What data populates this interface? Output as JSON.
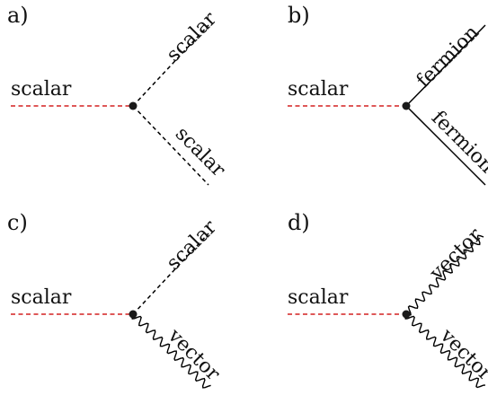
{
  "colors": {
    "incoming": "#d42020",
    "line": "#000000",
    "vertex": "#1a1a1a"
  },
  "panels": [
    {
      "label": "a)",
      "incoming": {
        "label": "scalar",
        "kind": "scalar"
      },
      "upper": {
        "label": "scalar",
        "kind": "scalar"
      },
      "lower": {
        "label": "scalar",
        "kind": "scalar"
      }
    },
    {
      "label": "b)",
      "incoming": {
        "label": "scalar",
        "kind": "scalar"
      },
      "upper": {
        "label": "fermion",
        "kind": "fermion"
      },
      "lower": {
        "label": "fermion",
        "kind": "fermion"
      }
    },
    {
      "label": "c)",
      "incoming": {
        "label": "scalar",
        "kind": "scalar"
      },
      "upper": {
        "label": "scalar",
        "kind": "scalar"
      },
      "lower": {
        "label": "vector",
        "kind": "vector"
      }
    },
    {
      "label": "d)",
      "incoming": {
        "label": "scalar",
        "kind": "scalar"
      },
      "upper": {
        "label": "vector",
        "kind": "vector"
      },
      "lower": {
        "label": "vector",
        "kind": "vector"
      }
    }
  ]
}
